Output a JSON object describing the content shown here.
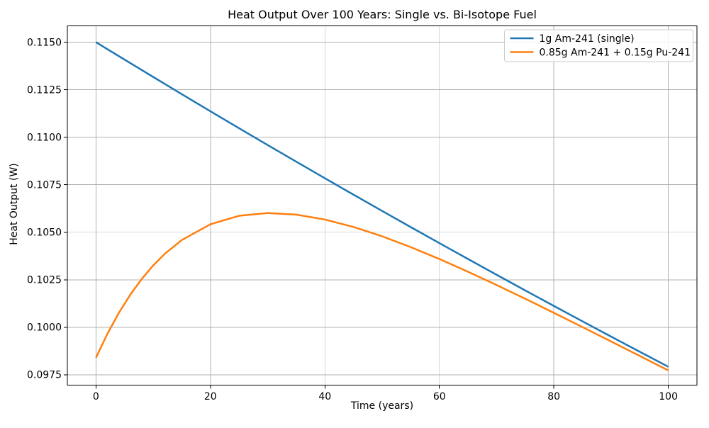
{
  "chart_data": {
    "type": "line",
    "title": "Heat Output Over 100 Years: Single vs. Bi-Isotope Fuel",
    "xlabel": "Time (years)",
    "ylabel": "Heat Output (W)",
    "xlim": [
      -5,
      105
    ],
    "ylim": [
      0.096956,
      0.115859
    ],
    "grid": true,
    "legend_position": "upper right",
    "grid_color": "#b0b0b0",
    "spine_color": "#000000",
    "legend_border_color": "#cccccc",
    "xticks": [
      0,
      20,
      40,
      60,
      80,
      100
    ],
    "xtick_labels": [
      "0",
      "20",
      "40",
      "60",
      "80",
      "100"
    ],
    "yticks": [
      0.0975,
      0.1,
      0.1025,
      0.105,
      0.1075,
      0.11,
      0.1125,
      0.115
    ],
    "ytick_labels": [
      "0.0975",
      "0.1000",
      "0.1025",
      "0.1050",
      "0.1075",
      "0.1100",
      "0.1125",
      "0.1150"
    ],
    "x": [
      0,
      2,
      4,
      6,
      8,
      10,
      12,
      15,
      20,
      25,
      30,
      35,
      40,
      45,
      50,
      55,
      60,
      65,
      70,
      75,
      80,
      85,
      90,
      95,
      100
    ],
    "series": [
      {
        "name": "1g Am-241 (single)",
        "color": "#1f77b4",
        "values": [
          0.115,
          0.114632,
          0.114265,
          0.113899,
          0.113534,
          0.11317,
          0.112808,
          0.112264,
          0.111365,
          0.110473,
          0.109589,
          0.108711,
          0.107841,
          0.106977,
          0.106121,
          0.105271,
          0.104428,
          0.103592,
          0.102762,
          0.101939,
          0.101123,
          0.100313,
          0.09951,
          0.098713,
          0.097923
        ]
      },
      {
        "name": "0.85g Am-241 + 0.15g Pu-241",
        "color": "#ff7f0e",
        "values": [
          0.098399,
          0.099659,
          0.100759,
          0.101716,
          0.102543,
          0.103254,
          0.10386,
          0.104592,
          0.105423,
          0.105866,
          0.106011,
          0.105928,
          0.105669,
          0.105278,
          0.104786,
          0.104217,
          0.103591,
          0.102923,
          0.102222,
          0.101499,
          0.10076,
          0.100011,
          0.099253,
          0.098492,
          0.097729
        ]
      }
    ]
  }
}
